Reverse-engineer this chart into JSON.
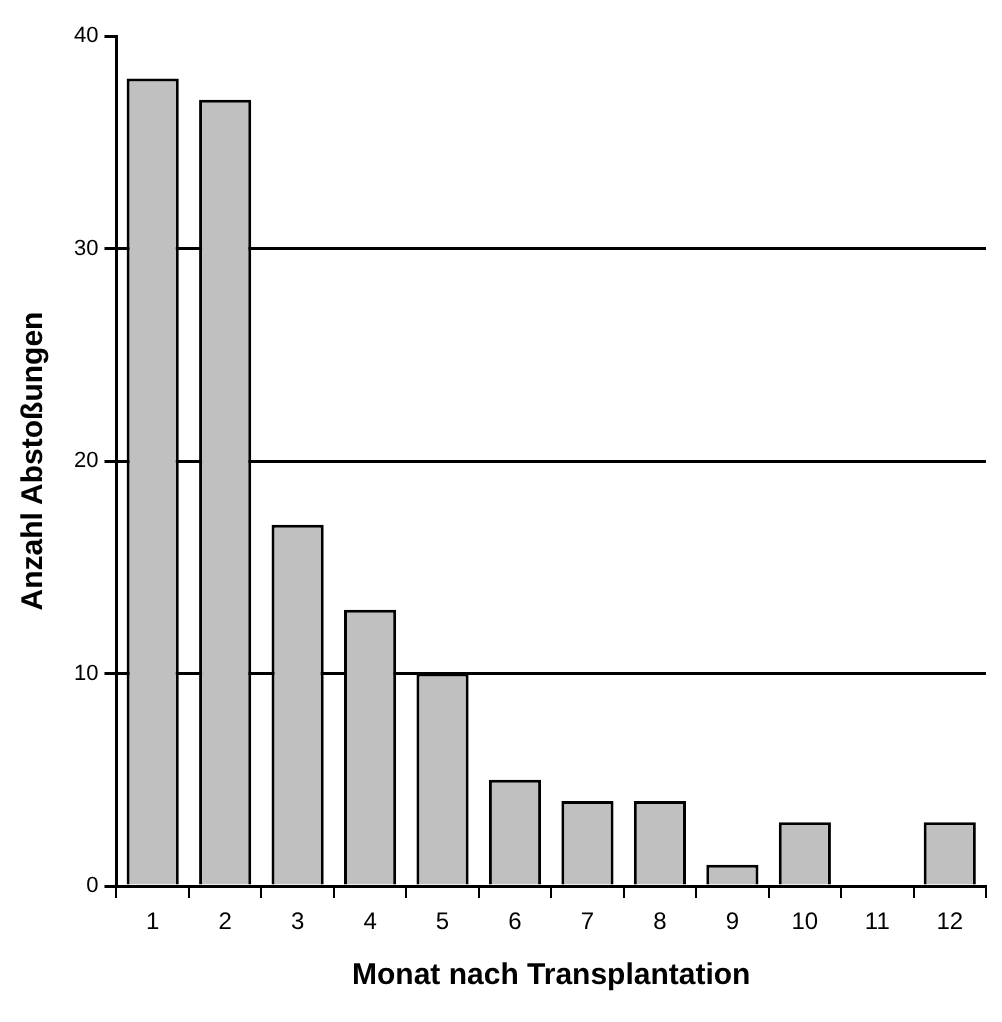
{
  "chart_data": {
    "type": "bar",
    "xlabel": "Monat nach Transplantation",
    "ylabel": "Anzahl Abstoßungen",
    "categories": [
      "1",
      "2",
      "3",
      "4",
      "5",
      "6",
      "7",
      "8",
      "9",
      "10",
      "11",
      "12"
    ],
    "values": [
      38,
      37,
      17,
      13,
      10,
      5,
      4,
      4,
      1,
      3,
      0,
      3
    ],
    "color": "#c0c0c0",
    "ylim": [
      0,
      40
    ],
    "yticks": [
      0,
      10,
      20,
      30,
      40
    ],
    "grid": "y",
    "legend": false
  }
}
